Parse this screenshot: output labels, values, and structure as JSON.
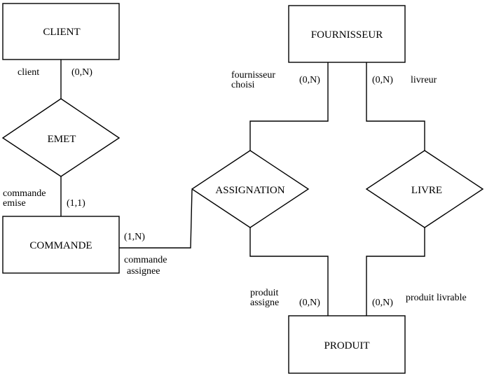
{
  "entities": {
    "client": "CLIENT",
    "fournisseur": "FOURNISSEUR",
    "commande": "COMMANDE",
    "produit": "PRODUIT"
  },
  "relationships": {
    "emet": "EMET",
    "assignation": "ASSIGNATION",
    "livre": "LIVRE"
  },
  "roles": {
    "client": "client",
    "commande_emise": [
      "commande",
      "emise"
    ],
    "fournisseur_choisi": [
      "fournisseur",
      "choisi"
    ],
    "livreur": "livreur",
    "commande_assignee": [
      "commande",
      "assignee"
    ],
    "produit_assigne": [
      "produit",
      "assigne"
    ],
    "produit_livrable": "produit livrable"
  },
  "cardinalities": {
    "client_emet": "(0,N)",
    "commande_emet": "(1,1)",
    "fournisseur_assignation": "(0,N)",
    "fournisseur_livre": "(0,N)",
    "commande_assignation": "(1,N)",
    "produit_assignation": "(0,N)",
    "produit_livre": "(0,N)"
  }
}
